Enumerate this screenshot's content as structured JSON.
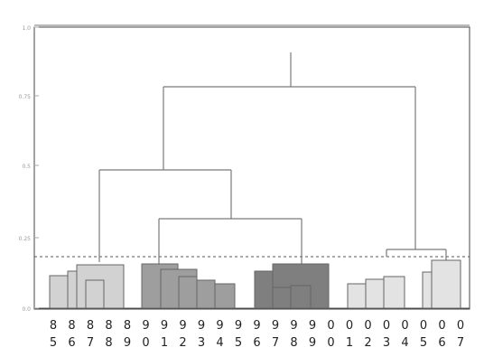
{
  "y_axis": {
    "tick_labels": [
      "1.0",
      "0.75",
      "0.5",
      "0.25",
      "0.0"
    ]
  },
  "leaf_labels": [
    [
      "8",
      "5"
    ],
    [
      "8",
      "6"
    ],
    [
      "8",
      "7"
    ],
    [
      "8",
      "8"
    ],
    [
      "8",
      "9"
    ],
    [
      "9",
      "0"
    ],
    [
      "9",
      "1"
    ],
    [
      "9",
      "2"
    ],
    [
      "9",
      "3"
    ],
    [
      "9",
      "4"
    ],
    [
      "9",
      "5"
    ],
    [
      "9",
      "6"
    ],
    [
      "9",
      "7"
    ],
    [
      "9",
      "8"
    ],
    [
      "9",
      "9"
    ],
    [
      "0",
      "0"
    ],
    [
      "0",
      "1"
    ],
    [
      "0",
      "2"
    ],
    [
      "0",
      "3"
    ],
    [
      "0",
      "4"
    ],
    [
      "0",
      "5"
    ],
    [
      "0",
      "6"
    ],
    [
      "0",
      "7"
    ]
  ],
  "colors": {
    "frame": "#444444",
    "branch": "#7a7a7a",
    "cutoff_line": "#555555",
    "group_a_fill": "#d2d2d2",
    "group_b_fill": "#9e9e9e",
    "group_c_fill": "#7f7f7f",
    "group_d_fill": "#e3e3e3",
    "bar_stroke": "#666666"
  }
}
